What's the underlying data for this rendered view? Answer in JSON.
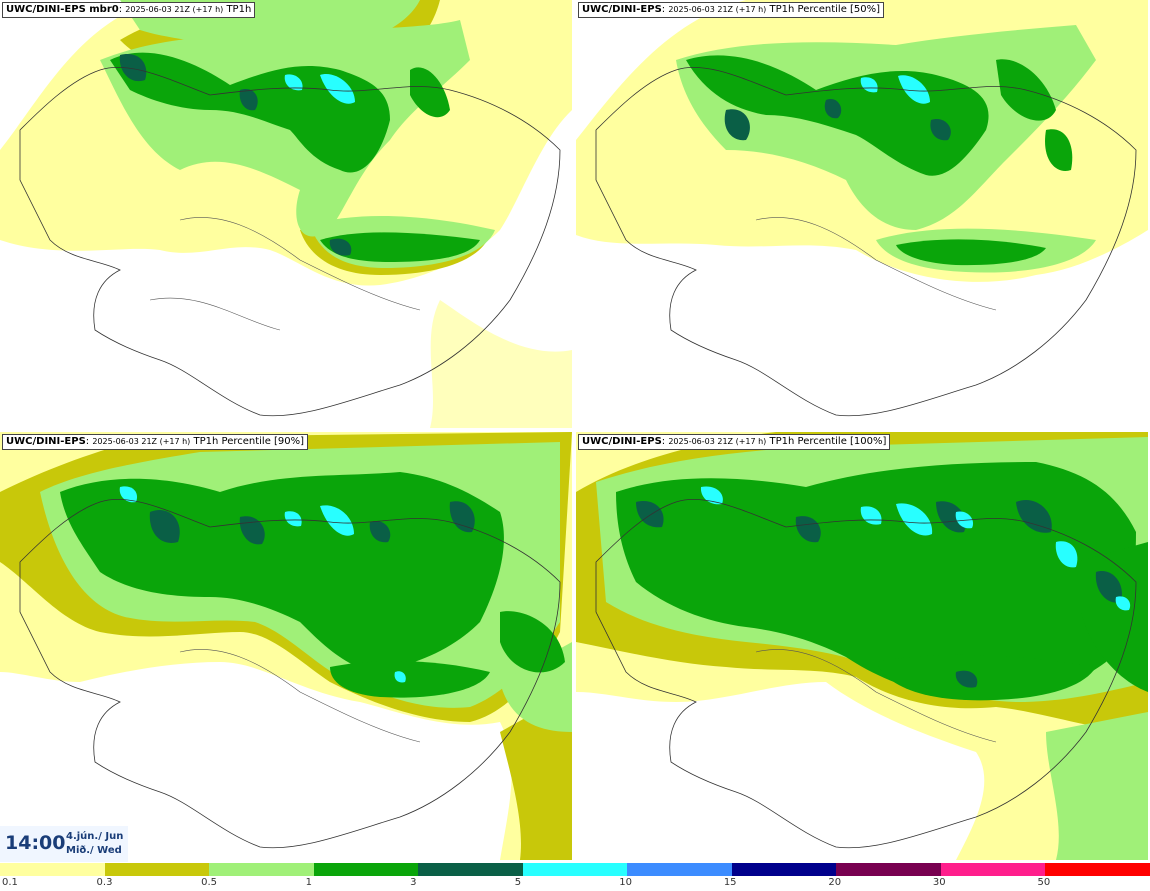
{
  "panels": [
    {
      "model": "UWC/DINI-EPS",
      "model_suffix": " mbr0",
      "run": "2025-06-03 21Z (+17 h)",
      "field": "TP1h"
    },
    {
      "model": "UWC/DINI-EPS",
      "model_suffix": "",
      "run": "2025-06-03 21Z (+17 h)",
      "field": "TP1h Percentile [50%]"
    },
    {
      "model": "UWC/DINI-EPS",
      "model_suffix": "",
      "run": "2025-06-03 21Z (+17 h)",
      "field": "TP1h Percentile [90%]"
    },
    {
      "model": "UWC/DINI-EPS",
      "model_suffix": "",
      "run": "2025-06-03 21Z (+17 h)",
      "field": "TP1h Percentile [100%]"
    }
  ],
  "valid_time": {
    "time": "14:00",
    "date_line1": "4.jún./ Jun",
    "date_line2": "Mið./ Wed"
  },
  "colorbar": {
    "labels": [
      "0.1",
      "0.3",
      "0.5",
      "1",
      "3",
      "5",
      "10",
      "15",
      "20",
      "30",
      "50"
    ],
    "colors": [
      "#ffff9f",
      "#c8c80a",
      "#a0f078",
      "#0aa50a",
      "#0a5f46",
      "#28ffff",
      "#3c8cff",
      "#00008c",
      "#780050",
      "#ff1e8c",
      "#ff0000"
    ]
  }
}
